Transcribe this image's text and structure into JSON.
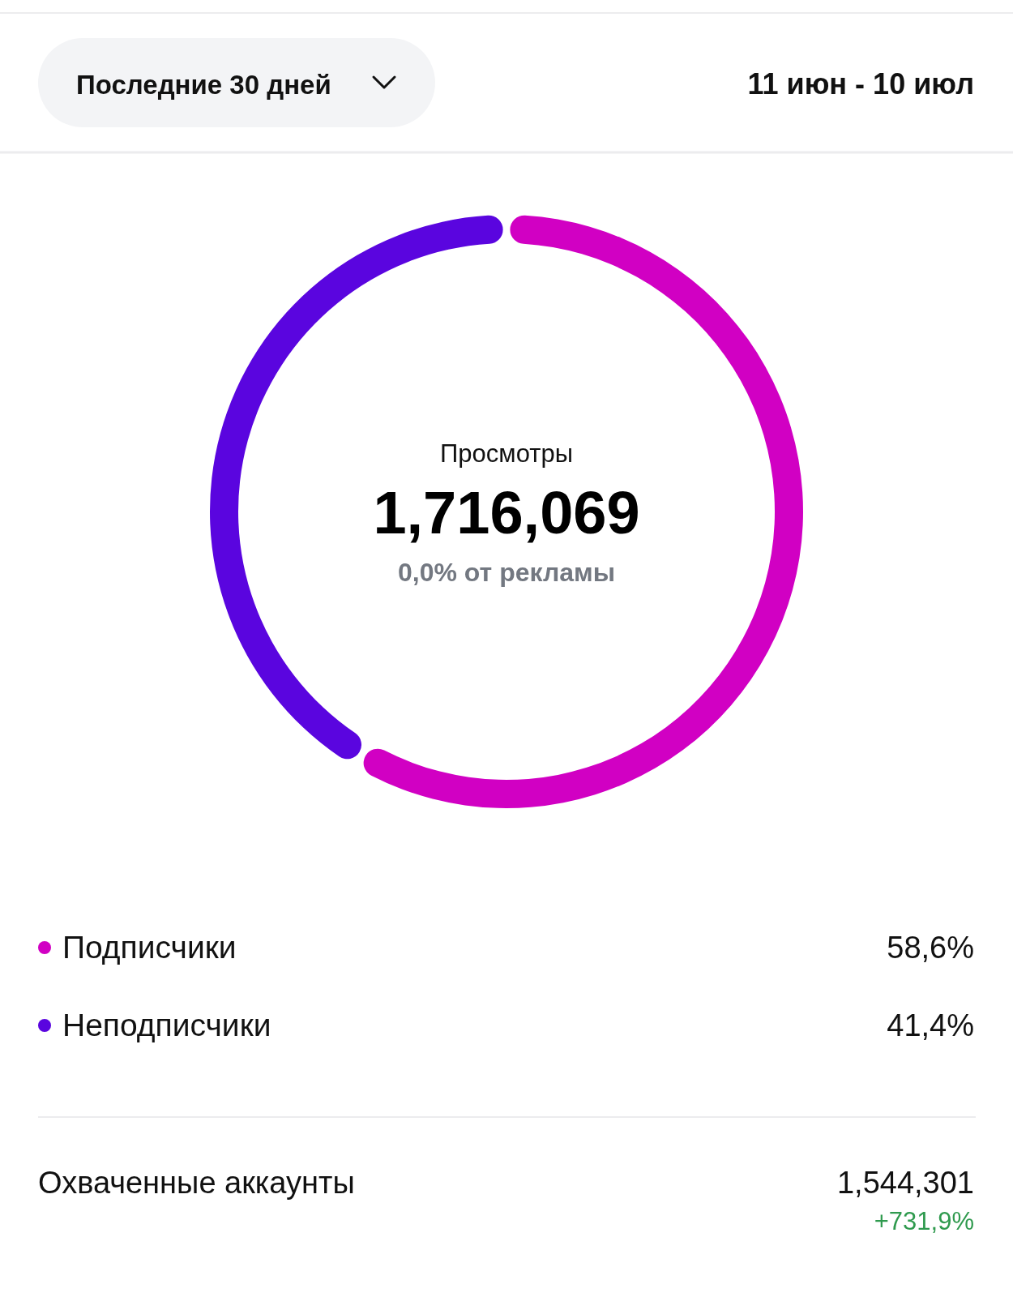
{
  "chart_data": {
    "type": "donut",
    "title": "Просмотры",
    "categories": [
      "Подписчики",
      "Неподписчики"
    ],
    "values": [
      58.6,
      41.4
    ],
    "colors": [
      "#d100c3",
      "#5a05df"
    ],
    "value_labels": [
      "58,6%",
      "41,4%"
    ],
    "legend": "bottom",
    "annotations": [
      "Последние 30 дней",
      "11 июн - 10 июл",
      "1,716,069",
      "0,0% от рекламы",
      "Охваченные аккаунты",
      "1,544,301",
      "+731,9%"
    ]
  }
}
